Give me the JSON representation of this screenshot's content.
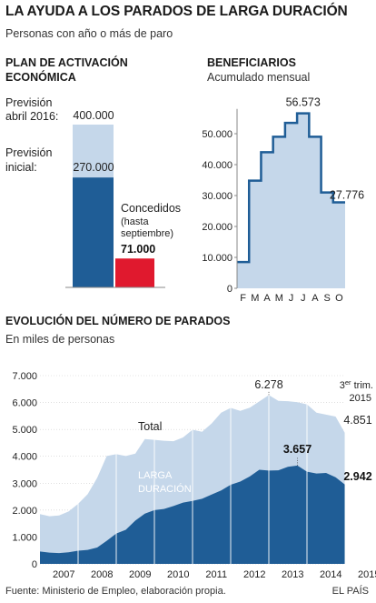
{
  "header": {
    "title": "LA AYUDA A LOS PARADOS DE LARGA DURACIÓN",
    "subtitle": "Personas con año o más de paro"
  },
  "colors": {
    "dark_blue": "#1f5d96",
    "light_blue": "#c5d7ea",
    "red": "#e0192e",
    "axis_grey": "#888888"
  },
  "chart_data": [
    {
      "type": "bar",
      "title_line1": "PLAN DE ACTIVACIÓN",
      "title_line2": "ECONÓMICA",
      "categories": [
        "Previsión",
        "Concedidos"
      ],
      "prevision_abril_label_1": "Previsión",
      "prevision_abril_label_2": "abril 2016:",
      "prevision_abril_value": 400000,
      "prevision_abril_text": "400.000",
      "prevision_inicial_label_1": "Previsión",
      "prevision_inicial_label_2": "inicial:",
      "prevision_inicial_value": 270000,
      "prevision_inicial_text": "270.000",
      "concedidos_label_1": "Concedidos",
      "concedidos_label_2": "(hasta",
      "concedidos_label_3": "septiembre)",
      "concedidos_value": 71000,
      "concedidos_text": "71.000"
    },
    {
      "type": "area",
      "title": "BENEFICIARIOS",
      "subtitle": "Acumulado mensual",
      "categories": [
        "F",
        "M",
        "A",
        "M",
        "J",
        "J",
        "A",
        "S",
        "O"
      ],
      "values": [
        8500,
        34800,
        44000,
        49000,
        53500,
        56573,
        49000,
        31000,
        27776
      ],
      "ylim": [
        0,
        58000
      ],
      "yticks": [
        0,
        10000,
        20000,
        30000,
        40000,
        50000
      ],
      "ytick_labels": [
        "0",
        "10.000",
        "20.000",
        "30.000",
        "40.000",
        "50.000"
      ],
      "peak_label": "56.573",
      "last_label": "27.776"
    },
    {
      "type": "area",
      "title": "EVOLUCIÓN DEL NÚMERO DE PARADOS",
      "subtitle": "En miles de personas",
      "x": [
        2006.75,
        2007.0,
        2007.25,
        2007.5,
        2007.75,
        2008.0,
        2008.25,
        2008.5,
        2008.75,
        2009.0,
        2009.25,
        2009.5,
        2009.75,
        2010.0,
        2010.25,
        2010.5,
        2010.75,
        2011.0,
        2011.25,
        2011.5,
        2011.75,
        2012.0,
        2012.25,
        2012.5,
        2012.75,
        2013.0,
        2013.25,
        2013.5,
        2013.75,
        2014.0,
        2014.25,
        2014.5,
        2014.75
      ],
      "series": [
        {
          "name": "Total",
          "values": [
            1850,
            1770,
            1800,
            1950,
            2230,
            2590,
            3200,
            4010,
            4080,
            4010,
            4100,
            4640,
            4610,
            4580,
            4560,
            4700,
            4990,
            4910,
            5220,
            5620,
            5800,
            5690,
            5810,
            6040,
            6278,
            6060,
            6050,
            6010,
            5930,
            5620,
            5550,
            5480,
            4851
          ]
        },
        {
          "name": "LARGA DURACIÓN",
          "values": [
            460,
            420,
            400,
            430,
            490,
            520,
            610,
            860,
            1130,
            1270,
            1610,
            1870,
            2000,
            2040,
            2150,
            2280,
            2340,
            2420,
            2580,
            2730,
            2940,
            3060,
            3250,
            3500,
            3470,
            3480,
            3610,
            3657,
            3430,
            3360,
            3380,
            3220,
            2942
          ]
        }
      ],
      "series_label_total": "Total",
      "series_label_ld_1": "LARGA",
      "series_label_ld_2": "DURACIÓN",
      "ylim": [
        0,
        7000
      ],
      "yticks": [
        0,
        1000,
        2000,
        3000,
        4000,
        5000,
        6000,
        7000
      ],
      "ytick_labels": [
        "0",
        "1.000",
        "2.000",
        "3.000",
        "4.000",
        "5.000",
        "6.000",
        "7.000"
      ],
      "xtick_labels": [
        "2007",
        "2008",
        "2009",
        "2010",
        "2011",
        "2012",
        "2013",
        "2014",
        "2015"
      ],
      "annotations": {
        "total_peak": "6.278",
        "ld_peak": "3.657",
        "total_last": "4.851",
        "ld_last": "2.942",
        "quarter_1": "3",
        "quarter_sup": "er",
        "quarter_2": " trim.",
        "quarter_year": "2015"
      }
    }
  ],
  "footer": {
    "source": "Fuente: Ministerio de Empleo, elaboración propia.",
    "brand": "EL PAÍS"
  }
}
